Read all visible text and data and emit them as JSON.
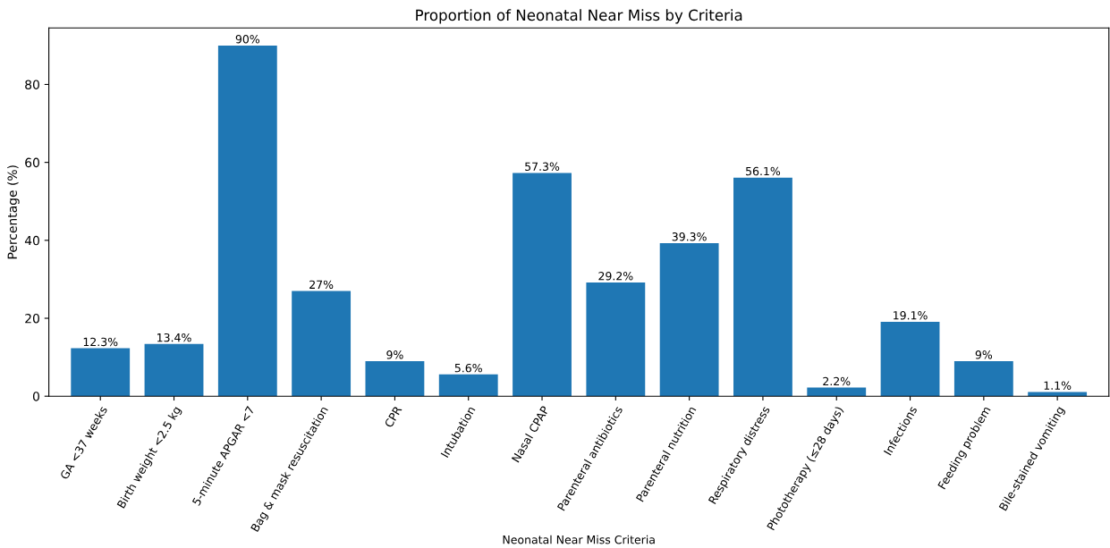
{
  "chart_data": {
    "type": "bar",
    "title": "Proportion of Neonatal Near Miss by Criteria",
    "xlabel": "Neonatal Near Miss Criteria",
    "ylabel": "Percentage (%)",
    "categories": [
      "GA <37 weeks",
      "Birth weight <2.5 kg",
      "5-minute APGAR <7",
      "Bag & mask resuscitation",
      "CPR",
      "Intubation",
      "Nasal CPAP",
      "Parenteral antibiotics",
      "Parenteral nutrition",
      "Respiratory distress",
      "Phototherapy (≤28 days)",
      "Infections",
      "Feeding problem",
      "Bile-stained vomiting"
    ],
    "values": [
      12.3,
      13.4,
      90,
      27,
      9,
      5.6,
      57.3,
      29.2,
      39.3,
      56.1,
      2.2,
      19.1,
      9,
      1.1
    ],
    "value_labels": [
      "12.3%",
      "13.4%",
      "90%",
      "27%",
      "9%",
      "5.6%",
      "57.3%",
      "29.2%",
      "39.3%",
      "56.1%",
      "2.2%",
      "19.1%",
      "9%",
      "1.1%"
    ],
    "color": "#1f77b4",
    "ylim": [
      0,
      94.5
    ],
    "yticks": [
      0,
      20,
      40,
      60,
      80
    ],
    "grid": false
  }
}
